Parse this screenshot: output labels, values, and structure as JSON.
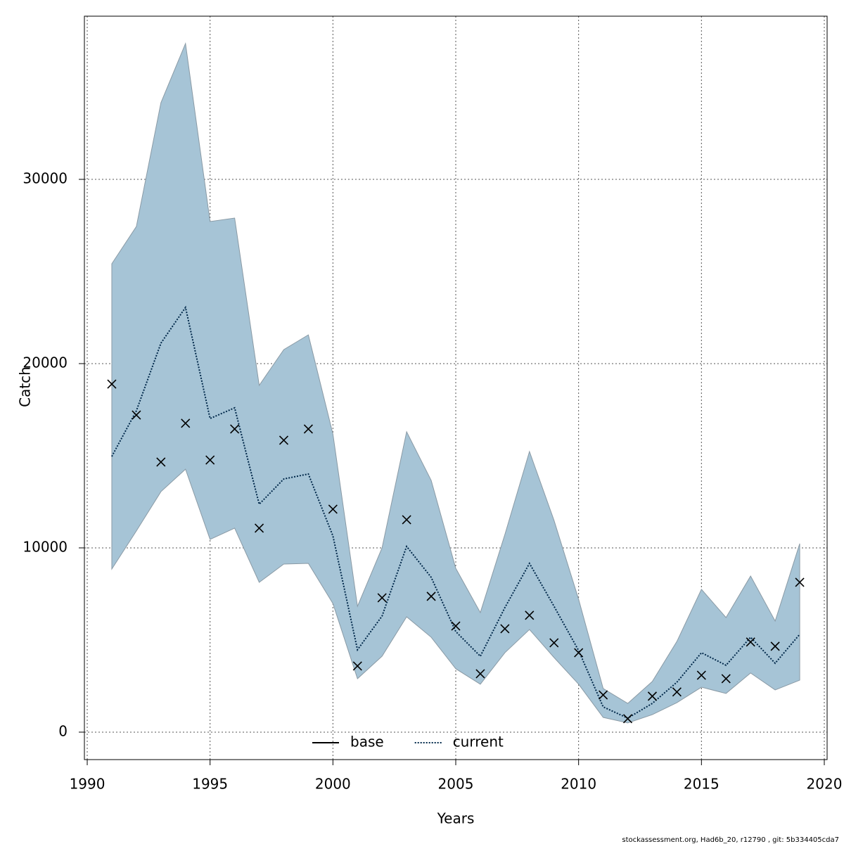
{
  "chart_data": {
    "type": "line",
    "xlabel": "Years",
    "ylabel": "Catch",
    "footer": "stockassessment.org, Had6b_20, r12790 , git: 5b334405cda7",
    "x": [
      1991,
      1992,
      1993,
      1994,
      1995,
      1996,
      1997,
      1998,
      1999,
      2000,
      2001,
      2002,
      2003,
      2004,
      2005,
      2006,
      2007,
      2008,
      2009,
      2010,
      2011,
      2012,
      2013,
      2014,
      2015,
      2016,
      2017,
      2018,
      2019
    ],
    "band": {
      "color": "#a6c4d6",
      "upper": [
        25420,
        27440,
        34160,
        37370,
        27710,
        27900,
        18820,
        20760,
        21560,
        16180,
        6830,
        10000,
        16300,
        13660,
        8890,
        6490,
        10730,
        15230,
        11490,
        7210,
        2370,
        1560,
        2750,
        4920,
        7750,
        6220,
        8470,
        6030,
        10230
      ],
      "lower": [
        8850,
        10920,
        13050,
        14270,
        10460,
        11070,
        8130,
        9120,
        9160,
        6980,
        2900,
        4120,
        6260,
        5150,
        3440,
        2600,
        4310,
        5570,
        4050,
        2600,
        800,
        500,
        950,
        1600,
        2440,
        2100,
        3210,
        2290,
        2820
      ]
    },
    "series": [
      {
        "color": "#00284a",
        "dash": "dotted",
        "values": [
          14960,
          17440,
          21110,
          23050,
          17020,
          17600,
          12370,
          13740,
          14010,
          10650,
          4470,
          6300,
          10080,
          8400,
          5460,
          4120,
          6760,
          9160,
          6830,
          4430,
          1370,
          760,
          1560,
          2710,
          4310,
          3630,
          5150,
          3740,
          5310
        ]
      }
    ],
    "points": {
      "color": "#000000",
      "values": [
        18890,
        17210,
        14660,
        16760,
        14770,
        16450,
        11070,
        15840,
        16450,
        12100,
        3590,
        7290,
        11530,
        7370,
        5760,
        3170,
        5610,
        6340,
        4850,
        4310,
        2020,
        730,
        1950,
        2180,
        3090,
        2900,
        4890,
        4660,
        8130
      ]
    },
    "legend": {
      "position": "bottom",
      "entries": [
        {
          "name": "base",
          "color": "#000000",
          "dash": "solid"
        },
        {
          "name": "current",
          "color": "#00284a",
          "dash": "dotted"
        }
      ]
    },
    "xlim": [
      1989.885,
      2020.115
    ],
    "ylim": [
      -1490,
      38855
    ],
    "xticks": [
      1990,
      1995,
      2000,
      2005,
      2010,
      2015,
      2020
    ],
    "yticks": [
      0,
      10000,
      20000,
      30000
    ],
    "grid": true
  }
}
